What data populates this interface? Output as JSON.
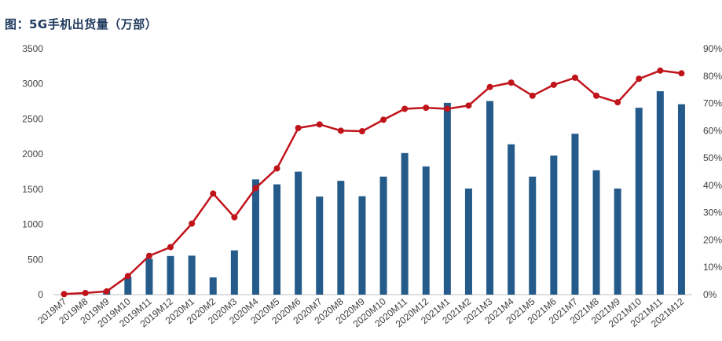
{
  "title": "图：5G手机出货量（万部）",
  "chart_data": {
    "type": "bar",
    "title": "图：5G手机出货量（万部）",
    "categories": [
      "2019M7",
      "2019M8",
      "2019M9",
      "2019M10",
      "2019M11",
      "2019M12",
      "2020M1",
      "2020M2",
      "2020M3",
      "2020M4",
      "2020M5",
      "2020M6",
      "2020M7",
      "2020M8",
      "2020M9",
      "2020M10",
      "2020M11",
      "2020M12",
      "2021M1",
      "2021M2",
      "2021M3",
      "2021M4",
      "2021M5",
      "2021M6",
      "2021M7",
      "2021M8",
      "2021M9",
      "2021M10",
      "2021M11",
      "2021M12"
    ],
    "series": [
      {
        "type": "bar",
        "axis": "left",
        "color": "#245b8a",
        "values": [
          0,
          0,
          60,
          250,
          510,
          550,
          555,
          245,
          630,
          1640,
          1570,
          1750,
          1395,
          1620,
          1400,
          1680,
          2015,
          1825,
          2730,
          1510,
          2755,
          2140,
          1680,
          1980,
          2290,
          1770,
          1510,
          2660,
          2895,
          2710
        ]
      },
      {
        "type": "line",
        "axis": "right",
        "color": "#c0141b",
        "values": [
          0.2,
          0.6,
          1.2,
          6.8,
          14.2,
          17.4,
          26.0,
          37.0,
          28.3,
          39.0,
          46.2,
          61.0,
          62.3,
          60.0,
          59.8,
          64.0,
          68.0,
          68.4,
          68.0,
          69.2,
          76.0,
          77.6,
          72.8,
          76.8,
          79.4,
          72.8,
          70.4,
          79.0,
          82.0,
          81.0
        ]
      }
    ],
    "ylim_left": [
      0,
      3500
    ],
    "ylim_right": [
      0,
      90
    ],
    "y_ticks_left": [
      "0",
      "500",
      "1000",
      "1500",
      "2000",
      "2500",
      "3000",
      "3500"
    ],
    "y_ticks_right": [
      "0%",
      "10%",
      "20%",
      "30%",
      "40%",
      "50%",
      "60%",
      "70%",
      "80%",
      "90%"
    ],
    "grid": false,
    "legend": "none"
  }
}
